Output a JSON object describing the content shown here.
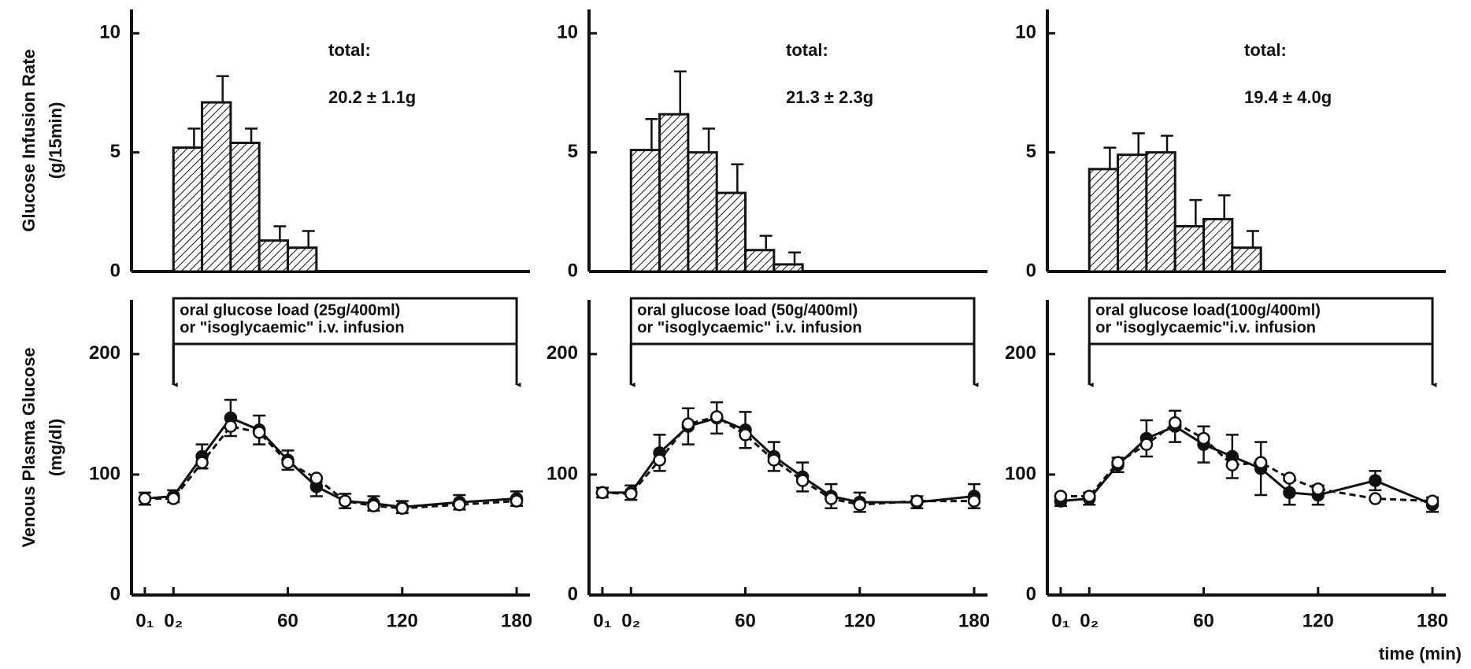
{
  "chart_data": [
    {
      "type": "histogram",
      "ylabel": [
        "Glucose Infusion Rate",
        "(g/15min)"
      ],
      "annotation": [
        "total:",
        "20.2 ± 1.1g"
      ],
      "bins": [
        0,
        15,
        30,
        45,
        60,
        75
      ],
      "values": [
        5.2,
        7.1,
        5.4,
        1.3,
        1.0
      ],
      "errors": [
        0.8,
        1.1,
        0.6,
        0.6,
        0.7
      ],
      "xlim": [
        -22,
        187
      ],
      "ylim": [
        0,
        11
      ],
      "yticks": [
        0,
        5,
        10
      ],
      "color": "#111111"
    },
    {
      "type": "histogram",
      "annotation": [
        "total:",
        "21.3 ± 2.3g"
      ],
      "bins": [
        0,
        15,
        30,
        45,
        60,
        75,
        90
      ],
      "values": [
        5.1,
        6.6,
        5.0,
        3.3,
        0.9,
        0.3
      ],
      "errors": [
        1.3,
        1.8,
        1.0,
        1.2,
        0.6,
        0.5
      ],
      "xlim": [
        -22,
        187
      ],
      "ylim": [
        0,
        11
      ],
      "yticks": [
        0,
        5,
        10
      ],
      "color": "#111111"
    },
    {
      "type": "histogram",
      "annotation": [
        "total:",
        "19.4 ± 4.0g"
      ],
      "bins": [
        0,
        15,
        30,
        45,
        60,
        75,
        90
      ],
      "values": [
        4.3,
        4.9,
        5.0,
        1.9,
        2.2,
        1.0
      ],
      "errors": [
        0.9,
        0.9,
        0.7,
        1.1,
        1.0,
        0.7
      ],
      "xlim": [
        -22,
        187
      ],
      "ylim": [
        0,
        11
      ],
      "yticks": [
        0,
        5,
        10
      ],
      "color": "#111111"
    },
    {
      "type": "line",
      "ylabel": [
        "Venous Plasma Glucose",
        "(mg/dl)"
      ],
      "annotation": [
        "oral glucose load (25g/400ml)",
        "or \"isoglycaemic\" i.v. infusion"
      ],
      "x": [
        -15,
        0,
        15,
        30,
        45,
        60,
        75,
        90,
        105,
        120,
        150,
        180
      ],
      "series": [
        {
          "color": "#111111",
          "dash": false,
          "values": [
            80,
            82,
            115,
            147,
            137,
            112,
            90,
            78,
            76,
            73,
            77,
            80
          ],
          "errors": [
            5,
            5,
            10,
            15,
            12,
            8,
            8,
            6,
            6,
            5,
            6,
            6
          ]
        },
        {
          "color": "#ffffff",
          "dash": true,
          "values": [
            80,
            80,
            110,
            140,
            135,
            110,
            97,
            78,
            74,
            72,
            75,
            78
          ]
        }
      ],
      "xlim": [
        -22,
        187
      ],
      "ylim": [
        0,
        245
      ],
      "yticks": [
        0,
        100,
        200
      ],
      "xticks": [
        {
          "value": -15,
          "label": "0₁"
        },
        {
          "value": 0,
          "label": "0₂"
        },
        60,
        120,
        180
      ]
    },
    {
      "type": "line",
      "annotation": [
        "oral glucose load (50g/400ml)",
        "or \"isoglycaemic\" i.v. infusion"
      ],
      "x": [
        -15,
        0,
        15,
        30,
        45,
        60,
        75,
        90,
        105,
        120,
        150,
        180
      ],
      "series": [
        {
          "color": "#111111",
          "dash": false,
          "values": [
            85,
            85,
            118,
            140,
            147,
            137,
            115,
            98,
            82,
            77,
            77,
            82
          ],
          "errors": [
            4,
            6,
            15,
            15,
            13,
            15,
            12,
            12,
            10,
            8,
            5,
            10
          ]
        },
        {
          "color": "#ffffff",
          "dash": true,
          "values": [
            85,
            84,
            112,
            142,
            148,
            133,
            112,
            95,
            80,
            75,
            78,
            78
          ]
        }
      ],
      "xlim": [
        -22,
        187
      ],
      "ylim": [
        0,
        245
      ],
      "yticks": [
        0,
        100,
        200
      ],
      "xticks": [
        {
          "value": -15,
          "label": "0₁"
        },
        {
          "value": 0,
          "label": "0₂"
        },
        60,
        120,
        180
      ]
    },
    {
      "type": "line",
      "annotation": [
        "oral glucose load(100g/400ml)",
        "or \"isoglycaemic\"i.v. infusion"
      ],
      "xlabel": "time (min)",
      "x": [
        -15,
        0,
        15,
        30,
        45,
        60,
        75,
        90,
        105,
        120,
        150,
        180
      ],
      "series": [
        {
          "color": "#111111",
          "dash": false,
          "values": [
            78,
            80,
            108,
            130,
            140,
            125,
            115,
            105,
            85,
            83,
            95,
            75
          ],
          "errors": [
            4,
            5,
            6,
            15,
            13,
            15,
            18,
            22,
            10,
            8,
            8,
            6
          ]
        },
        {
          "color": "#ffffff",
          "dash": true,
          "values": [
            82,
            82,
            110,
            125,
            143,
            130,
            108,
            110,
            97,
            88,
            80,
            78
          ]
        }
      ],
      "xlim": [
        -22,
        187
      ],
      "ylim": [
        0,
        245
      ],
      "yticks": [
        0,
        100,
        200
      ],
      "xticks": [
        {
          "value": -15,
          "label": "0₁"
        },
        {
          "value": 0,
          "label": "0₂"
        },
        60,
        120,
        180
      ]
    }
  ]
}
